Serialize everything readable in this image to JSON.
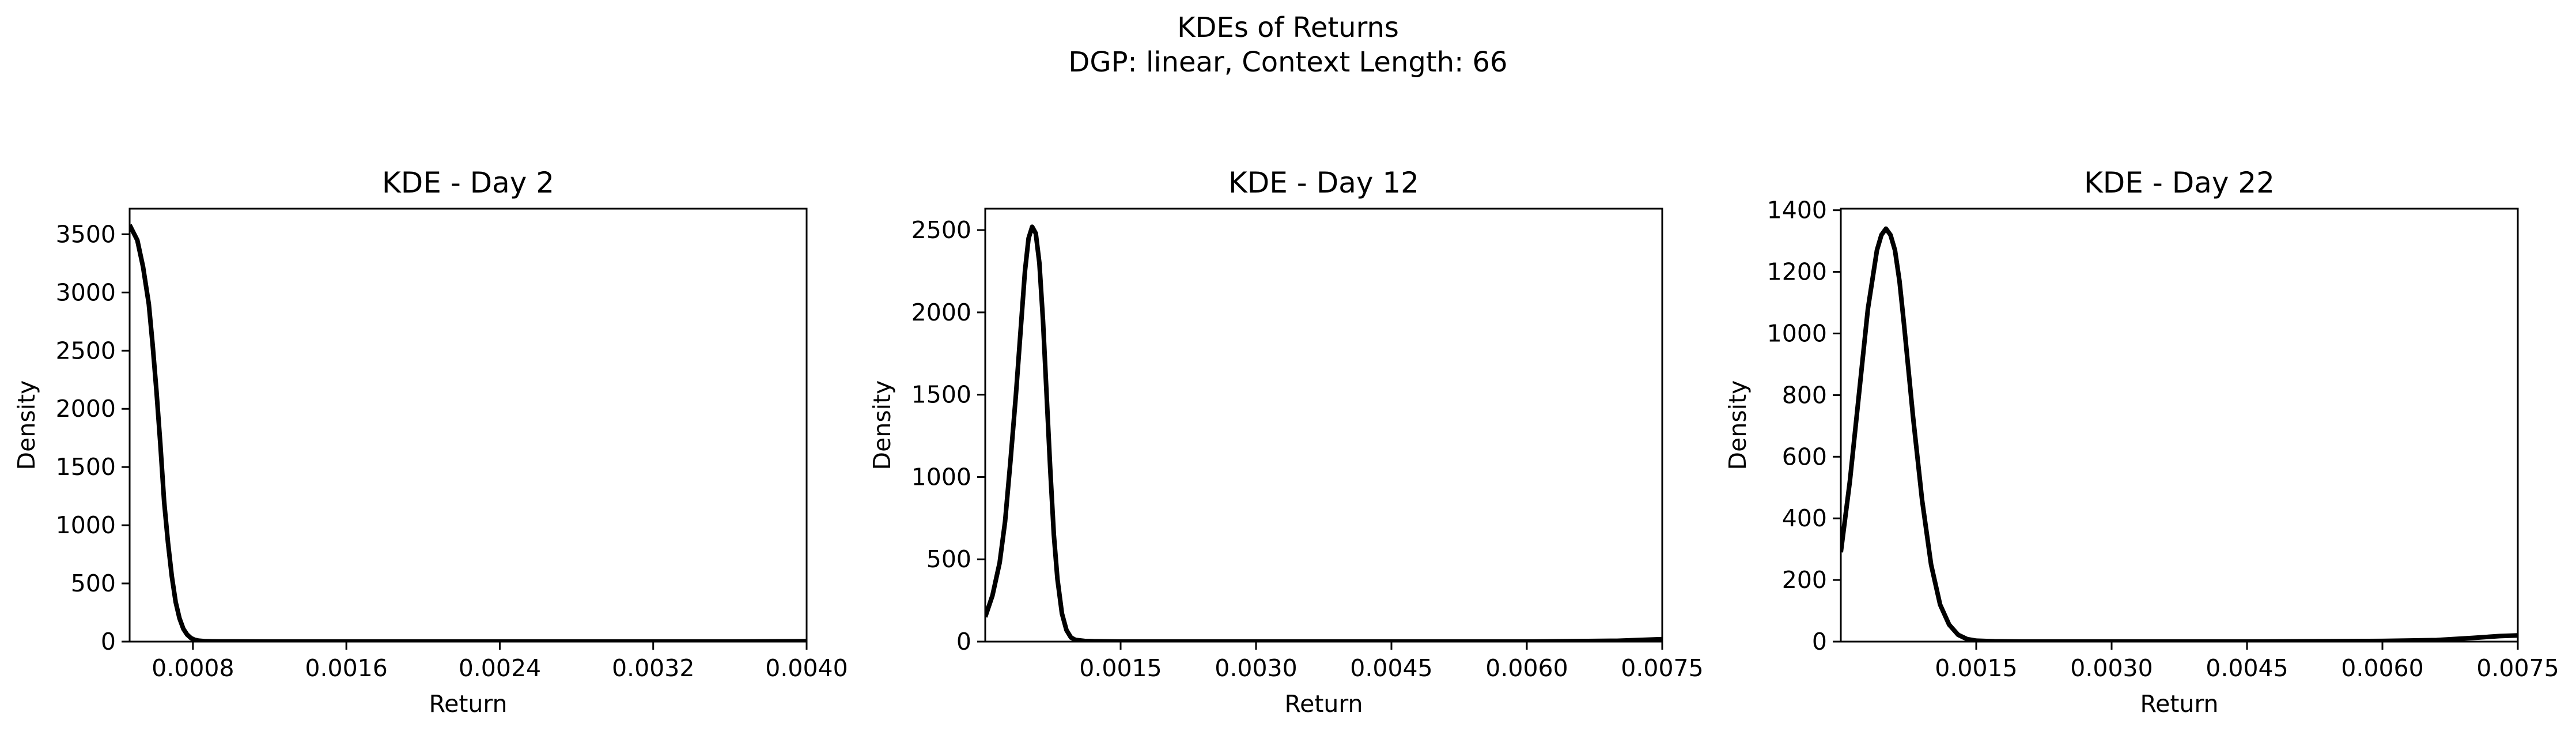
{
  "suptitle": {
    "line1": "KDEs of Returns",
    "line2": "DGP: linear, Context Length: 66"
  },
  "colors": {
    "line": "#000000",
    "axes": "#000000",
    "background": "#ffffff"
  },
  "chart_data": [
    {
      "type": "line",
      "title": "KDE - Day 2",
      "xlabel": "Return",
      "ylabel": "Density",
      "xlim": [
        0.00047,
        0.004
      ],
      "ylim": [
        0,
        3720
      ],
      "xticks": [
        0.0008,
        0.0016,
        0.0024,
        0.0032,
        0.004
      ],
      "xtick_labels": [
        "0.0008",
        "0.0016",
        "0.0024",
        "0.0032",
        "0.0040"
      ],
      "yticks": [
        0,
        500,
        1000,
        1500,
        2000,
        2500,
        3000,
        3500
      ],
      "ytick_labels": [
        "0",
        "500",
        "1000",
        "1500",
        "2000",
        "2500",
        "3000",
        "3500"
      ],
      "grid": false,
      "series": [
        {
          "x": [
            0.00047,
            0.00051,
            0.00054,
            0.00057,
            0.00059,
            0.00061,
            0.00063,
            0.00065,
            0.00067,
            0.00069,
            0.00071,
            0.00073,
            0.00075,
            0.00077,
            0.00079,
            0.00081,
            0.00083,
            0.00086,
            0.0009,
            0.00095,
            0.001,
            0.0012,
            0.0016,
            0.002,
            0.0024,
            0.0028,
            0.0032,
            0.0036,
            0.004
          ],
          "y": [
            3580,
            3450,
            3220,
            2900,
            2550,
            2150,
            1700,
            1200,
            850,
            560,
            340,
            200,
            110,
            60,
            30,
            15,
            8,
            4,
            2,
            1,
            1,
            0,
            0,
            0,
            0,
            0,
            0,
            0,
            3
          ]
        }
      ]
    },
    {
      "type": "line",
      "title": "KDE - Day 12",
      "xlabel": "Return",
      "ylabel": "Density",
      "xlim": [
        0.0,
        0.0075
      ],
      "ylim": [
        0,
        2630
      ],
      "xticks": [
        0.0015,
        0.003,
        0.0045,
        0.006,
        0.0075
      ],
      "xtick_labels": [
        "0.0015",
        "0.0030",
        "0.0045",
        "0.0060",
        "0.0075"
      ],
      "yticks": [
        0,
        500,
        1000,
        1500,
        2000,
        2500
      ],
      "ytick_labels": [
        "0",
        "500",
        "1000",
        "1500",
        "2000",
        "2500"
      ],
      "grid": false,
      "series": [
        {
          "x": [
            0.0,
            8e-05,
            0.00016,
            0.00022,
            0.00028,
            0.00034,
            0.0004,
            0.00044,
            0.00048,
            0.00052,
            0.00056,
            0.0006,
            0.00064,
            0.00068,
            0.00072,
            0.00076,
            0.0008,
            0.00085,
            0.0009,
            0.00095,
            0.001,
            0.0011,
            0.0012,
            0.0015,
            0.003,
            0.0045,
            0.006,
            0.007,
            0.0075
          ],
          "y": [
            150,
            280,
            480,
            730,
            1100,
            1500,
            1950,
            2250,
            2450,
            2520,
            2480,
            2300,
            1950,
            1500,
            1050,
            650,
            380,
            170,
            70,
            25,
            10,
            4,
            2,
            0,
            0,
            0,
            0,
            5,
            15
          ]
        }
      ]
    },
    {
      "type": "line",
      "title": "KDE - Day 22",
      "xlabel": "Return",
      "ylabel": "Density",
      "xlim": [
        0.0,
        0.0075
      ],
      "ylim": [
        0,
        1405
      ],
      "xticks": [
        0.0015,
        0.003,
        0.0045,
        0.006,
        0.0075
      ],
      "xtick_labels": [
        "0.0015",
        "0.0030",
        "0.0045",
        "0.0060",
        "0.0075"
      ],
      "yticks": [
        0,
        200,
        400,
        600,
        800,
        1000,
        1200,
        1400
      ],
      "ytick_labels": [
        "0",
        "200",
        "400",
        "600",
        "800",
        "1000",
        "1200",
        "1400"
      ],
      "grid": false,
      "series": [
        {
          "x": [
            0.0,
            0.0001,
            0.0002,
            0.0003,
            0.0004,
            0.00045,
            0.0005,
            0.00055,
            0.0006,
            0.00065,
            0.0007,
            0.0008,
            0.0009,
            0.001,
            0.0011,
            0.0012,
            0.0013,
            0.0014,
            0.0015,
            0.0017,
            0.002,
            0.003,
            0.0045,
            0.006,
            0.0066,
            0.007,
            0.0073,
            0.0075
          ],
          "y": [
            290,
            520,
            800,
            1080,
            1270,
            1320,
            1340,
            1320,
            1270,
            1170,
            1030,
            730,
            460,
            250,
            120,
            55,
            22,
            8,
            3,
            1,
            0,
            0,
            0,
            2,
            5,
            12,
            18,
            20
          ]
        }
      ]
    }
  ]
}
